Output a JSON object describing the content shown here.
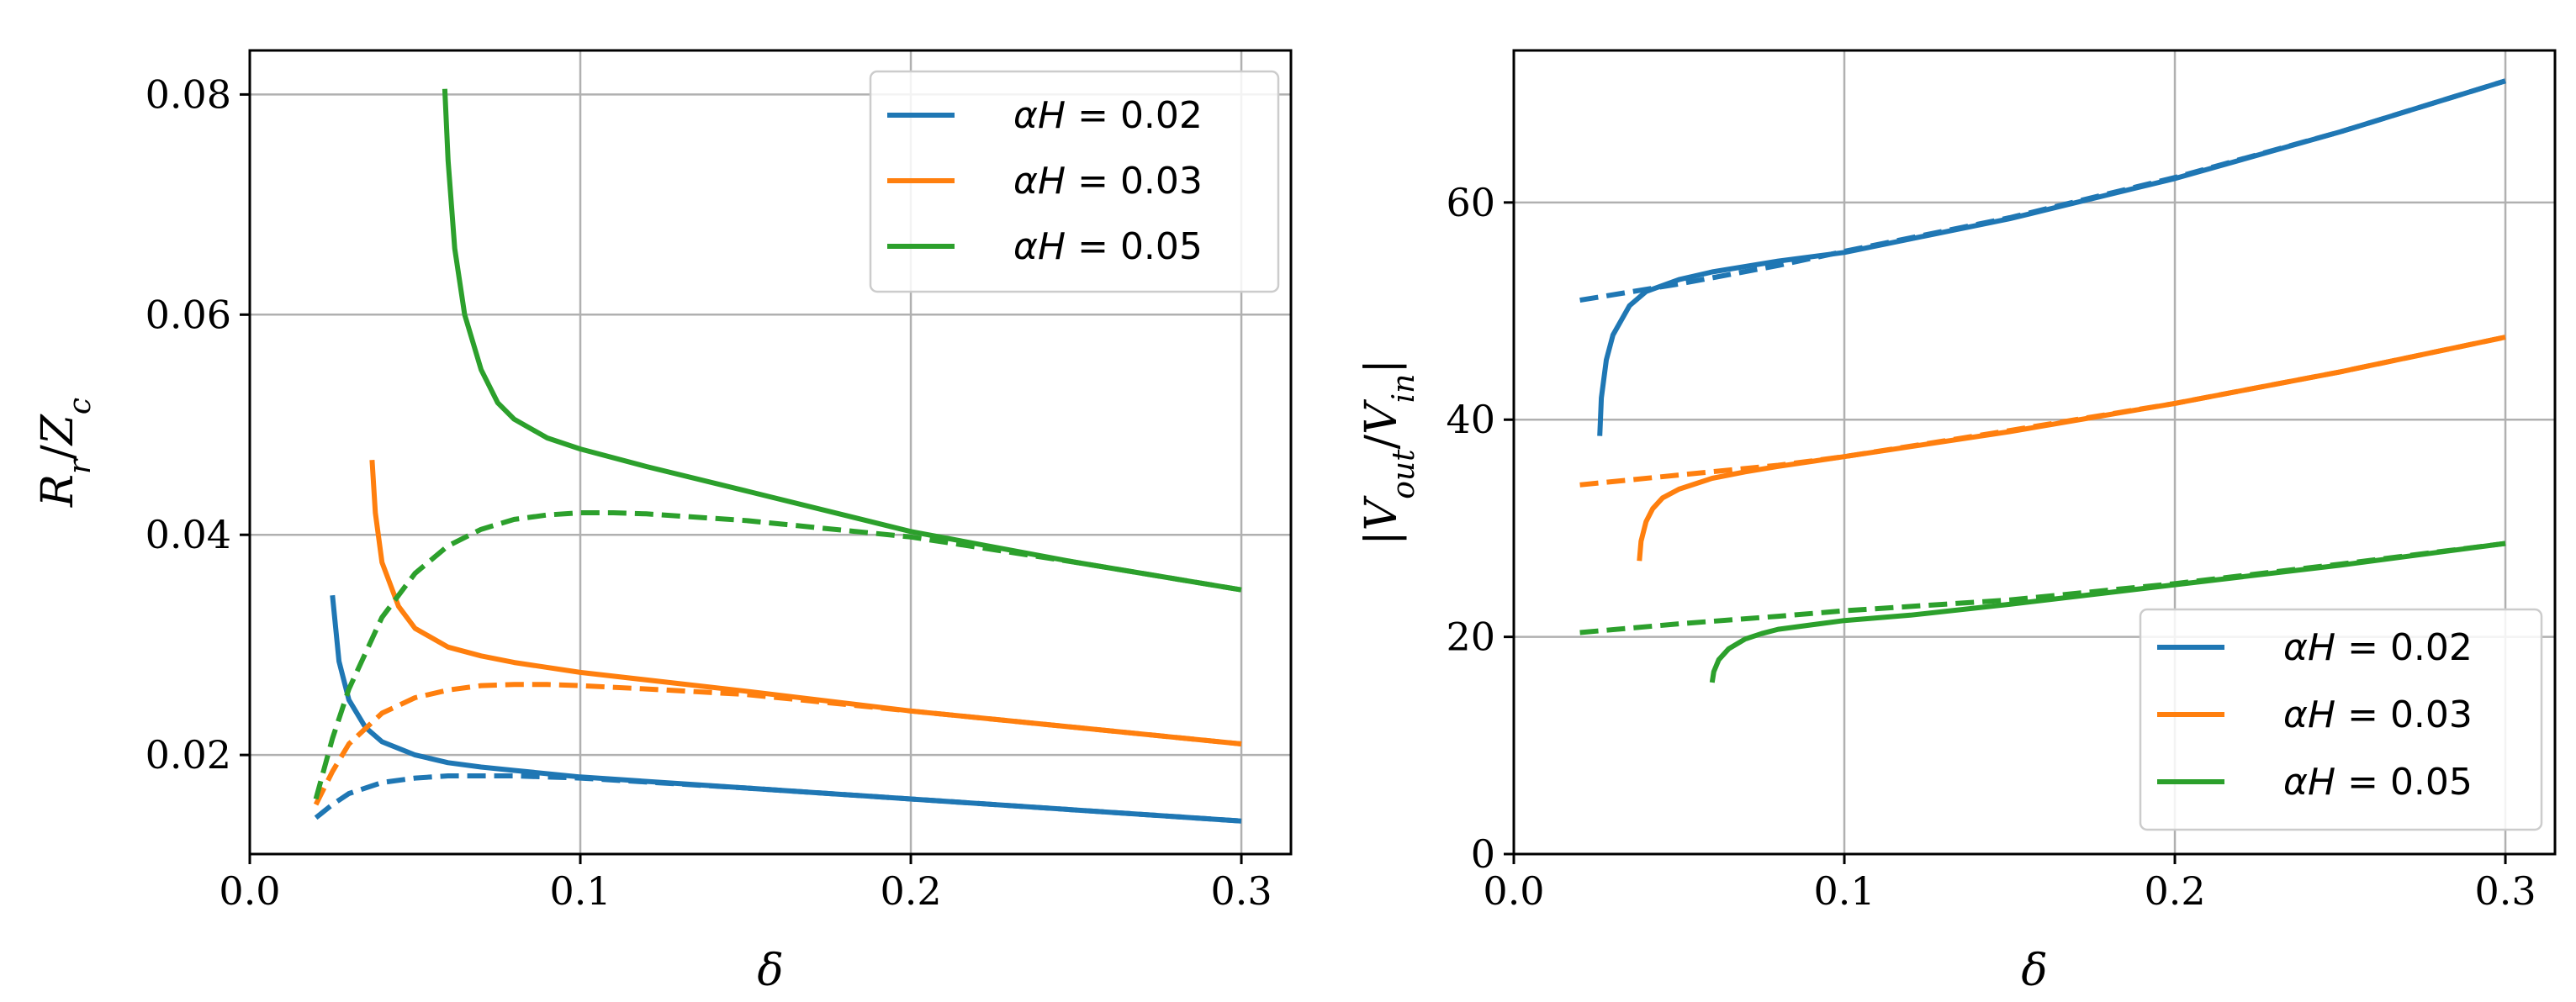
{
  "chart_data": [
    {
      "type": "line",
      "xlabel": "δ",
      "ylabel_parts": {
        "r1": "R",
        "r1_sub": "r",
        "slash": "/",
        "r2": "Z",
        "r2_sub": "c"
      },
      "xlim": [
        0.0,
        0.315
      ],
      "ylim": [
        0.011,
        0.084
      ],
      "xticks": [
        0.0,
        0.1,
        0.2,
        0.3
      ],
      "xtick_labels": [
        "0.0",
        "0.1",
        "0.2",
        "0.3"
      ],
      "yticks": [
        0.02,
        0.04,
        0.06,
        0.08
      ],
      "ytick_labels": [
        "0.02",
        "0.04",
        "0.06",
        "0.08"
      ],
      "grid": true,
      "legend_position": "upper right",
      "legend": [
        {
          "prefix": "αH",
          "eq": " = ",
          "value": "0.02",
          "color": "#1f77b4"
        },
        {
          "prefix": "αH",
          "eq": " = ",
          "value": "0.03",
          "color": "#ff7f0e"
        },
        {
          "prefix": "αH",
          "eq": " = ",
          "value": "0.05",
          "color": "#2ca02c"
        }
      ],
      "series": [
        {
          "name": "αH=0.02 solid",
          "color": "#1f77b4",
          "style": "solid",
          "x": [
            0.025,
            0.027,
            0.03,
            0.035,
            0.04,
            0.05,
            0.06,
            0.07,
            0.08,
            0.1,
            0.15,
            0.2,
            0.25,
            0.3
          ],
          "y": [
            0.0345,
            0.0285,
            0.025,
            0.0225,
            0.0212,
            0.02,
            0.0193,
            0.0189,
            0.0186,
            0.018,
            0.017,
            0.016,
            0.015,
            0.014
          ]
        },
        {
          "name": "αH=0.02 dashed",
          "color": "#1f77b4",
          "style": "dashed",
          "x": [
            0.02,
            0.025,
            0.03,
            0.04,
            0.05,
            0.06,
            0.08,
            0.1,
            0.15,
            0.2,
            0.25,
            0.3
          ],
          "y": [
            0.0143,
            0.0155,
            0.0165,
            0.0175,
            0.0179,
            0.0181,
            0.0181,
            0.0179,
            0.017,
            0.016,
            0.015,
            0.014
          ]
        },
        {
          "name": "αH=0.03 solid",
          "color": "#ff7f0e",
          "style": "solid",
          "x": [
            0.037,
            0.038,
            0.04,
            0.045,
            0.05,
            0.06,
            0.07,
            0.08,
            0.1,
            0.15,
            0.2,
            0.25,
            0.3
          ],
          "y": [
            0.0468,
            0.042,
            0.0375,
            0.0335,
            0.0315,
            0.0298,
            0.029,
            0.0284,
            0.0275,
            0.0258,
            0.024,
            0.0225,
            0.021
          ]
        },
        {
          "name": "αH=0.03 dashed",
          "color": "#ff7f0e",
          "style": "dashed",
          "x": [
            0.02,
            0.025,
            0.03,
            0.04,
            0.05,
            0.06,
            0.07,
            0.08,
            0.09,
            0.1,
            0.12,
            0.15,
            0.2,
            0.25,
            0.3
          ],
          "y": [
            0.0155,
            0.0185,
            0.021,
            0.0238,
            0.0252,
            0.0259,
            0.0263,
            0.0264,
            0.0264,
            0.0263,
            0.026,
            0.0255,
            0.024,
            0.0225,
            0.021
          ]
        },
        {
          "name": "αH=0.05 solid",
          "color": "#2ca02c",
          "style": "solid",
          "x": [
            0.059,
            0.06,
            0.062,
            0.065,
            0.07,
            0.075,
            0.08,
            0.09,
            0.1,
            0.12,
            0.15,
            0.2,
            0.25,
            0.3
          ],
          "y": [
            0.0805,
            0.074,
            0.066,
            0.06,
            0.055,
            0.052,
            0.0505,
            0.0488,
            0.0478,
            0.0462,
            0.044,
            0.0403,
            0.0375,
            0.035
          ]
        },
        {
          "name": "αH=0.05 dashed",
          "color": "#2ca02c",
          "style": "dashed",
          "x": [
            0.02,
            0.025,
            0.03,
            0.04,
            0.05,
            0.06,
            0.07,
            0.08,
            0.09,
            0.1,
            0.11,
            0.12,
            0.15,
            0.2,
            0.25,
            0.3
          ],
          "y": [
            0.016,
            0.0215,
            0.026,
            0.0325,
            0.0365,
            0.039,
            0.0405,
            0.0414,
            0.0418,
            0.042,
            0.042,
            0.0419,
            0.0413,
            0.0398,
            0.0375,
            0.035
          ]
        }
      ]
    },
    {
      "type": "line",
      "xlabel": "δ",
      "ylabel_parts": {
        "bar1": "|",
        "r1": "V",
        "r1_sub": "out",
        "slash": "/",
        "r2": "V",
        "r2_sub": "in",
        "bar2": "|"
      },
      "xlim": [
        0.0,
        0.315
      ],
      "ylim": [
        0.0,
        74.0
      ],
      "xticks": [
        0.0,
        0.1,
        0.2,
        0.3
      ],
      "xtick_labels": [
        "0.0",
        "0.1",
        "0.2",
        "0.3"
      ],
      "yticks": [
        0,
        20,
        40,
        60
      ],
      "ytick_labels": [
        "0",
        "20",
        "40",
        "60"
      ],
      "grid": true,
      "legend_position": "lower right",
      "legend": [
        {
          "prefix": "αH",
          "eq": " = ",
          "value": "0.02",
          "color": "#1f77b4"
        },
        {
          "prefix": "αH",
          "eq": " = ",
          "value": "0.03",
          "color": "#ff7f0e"
        },
        {
          "prefix": "αH",
          "eq": " = ",
          "value": "0.05",
          "color": "#2ca02c"
        }
      ],
      "series": [
        {
          "name": "αH=0.02 solid",
          "color": "#1f77b4",
          "style": "solid",
          "x": [
            0.026,
            0.0265,
            0.028,
            0.03,
            0.035,
            0.04,
            0.05,
            0.06,
            0.08,
            0.1,
            0.15,
            0.2,
            0.25,
            0.3
          ],
          "y": [
            38.5,
            42.0,
            45.5,
            47.8,
            50.5,
            51.8,
            52.9,
            53.6,
            54.6,
            55.4,
            58.5,
            62.2,
            66.5,
            71.2
          ]
        },
        {
          "name": "αH=0.02 dashed",
          "color": "#1f77b4",
          "style": "dashed",
          "x": [
            0.02,
            0.05,
            0.08,
            0.1,
            0.15,
            0.2,
            0.25,
            0.3
          ],
          "y": [
            51.0,
            52.5,
            54.2,
            55.5,
            58.6,
            62.3,
            66.5,
            71.2
          ]
        },
        {
          "name": "αH=0.03 solid",
          "color": "#ff7f0e",
          "style": "solid",
          "x": [
            0.038,
            0.0385,
            0.04,
            0.042,
            0.045,
            0.05,
            0.06,
            0.07,
            0.08,
            0.1,
            0.15,
            0.2,
            0.25,
            0.3
          ],
          "y": [
            27.0,
            28.8,
            30.6,
            31.8,
            32.8,
            33.6,
            34.6,
            35.2,
            35.7,
            36.6,
            38.9,
            41.5,
            44.4,
            47.6
          ]
        },
        {
          "name": "αH=0.03 dashed",
          "color": "#ff7f0e",
          "style": "dashed",
          "x": [
            0.02,
            0.05,
            0.08,
            0.1,
            0.15,
            0.2,
            0.25,
            0.3
          ],
          "y": [
            34.0,
            34.9,
            35.8,
            36.6,
            39.0,
            41.5,
            44.4,
            47.6
          ]
        },
        {
          "name": "αH=0.05 solid",
          "color": "#2ca02c",
          "style": "solid",
          "x": [
            0.06,
            0.0605,
            0.062,
            0.065,
            0.07,
            0.075,
            0.08,
            0.09,
            0.1,
            0.12,
            0.15,
            0.2,
            0.25,
            0.3
          ],
          "y": [
            15.8,
            16.8,
            17.9,
            18.9,
            19.8,
            20.3,
            20.7,
            21.1,
            21.5,
            22.0,
            23.0,
            24.8,
            26.6,
            28.6
          ]
        },
        {
          "name": "αH=0.05 dashed",
          "color": "#2ca02c",
          "style": "dashed",
          "x": [
            0.02,
            0.05,
            0.08,
            0.1,
            0.15,
            0.2,
            0.25,
            0.3
          ],
          "y": [
            20.4,
            21.2,
            21.9,
            22.4,
            23.4,
            24.9,
            26.7,
            28.6
          ]
        }
      ]
    }
  ]
}
